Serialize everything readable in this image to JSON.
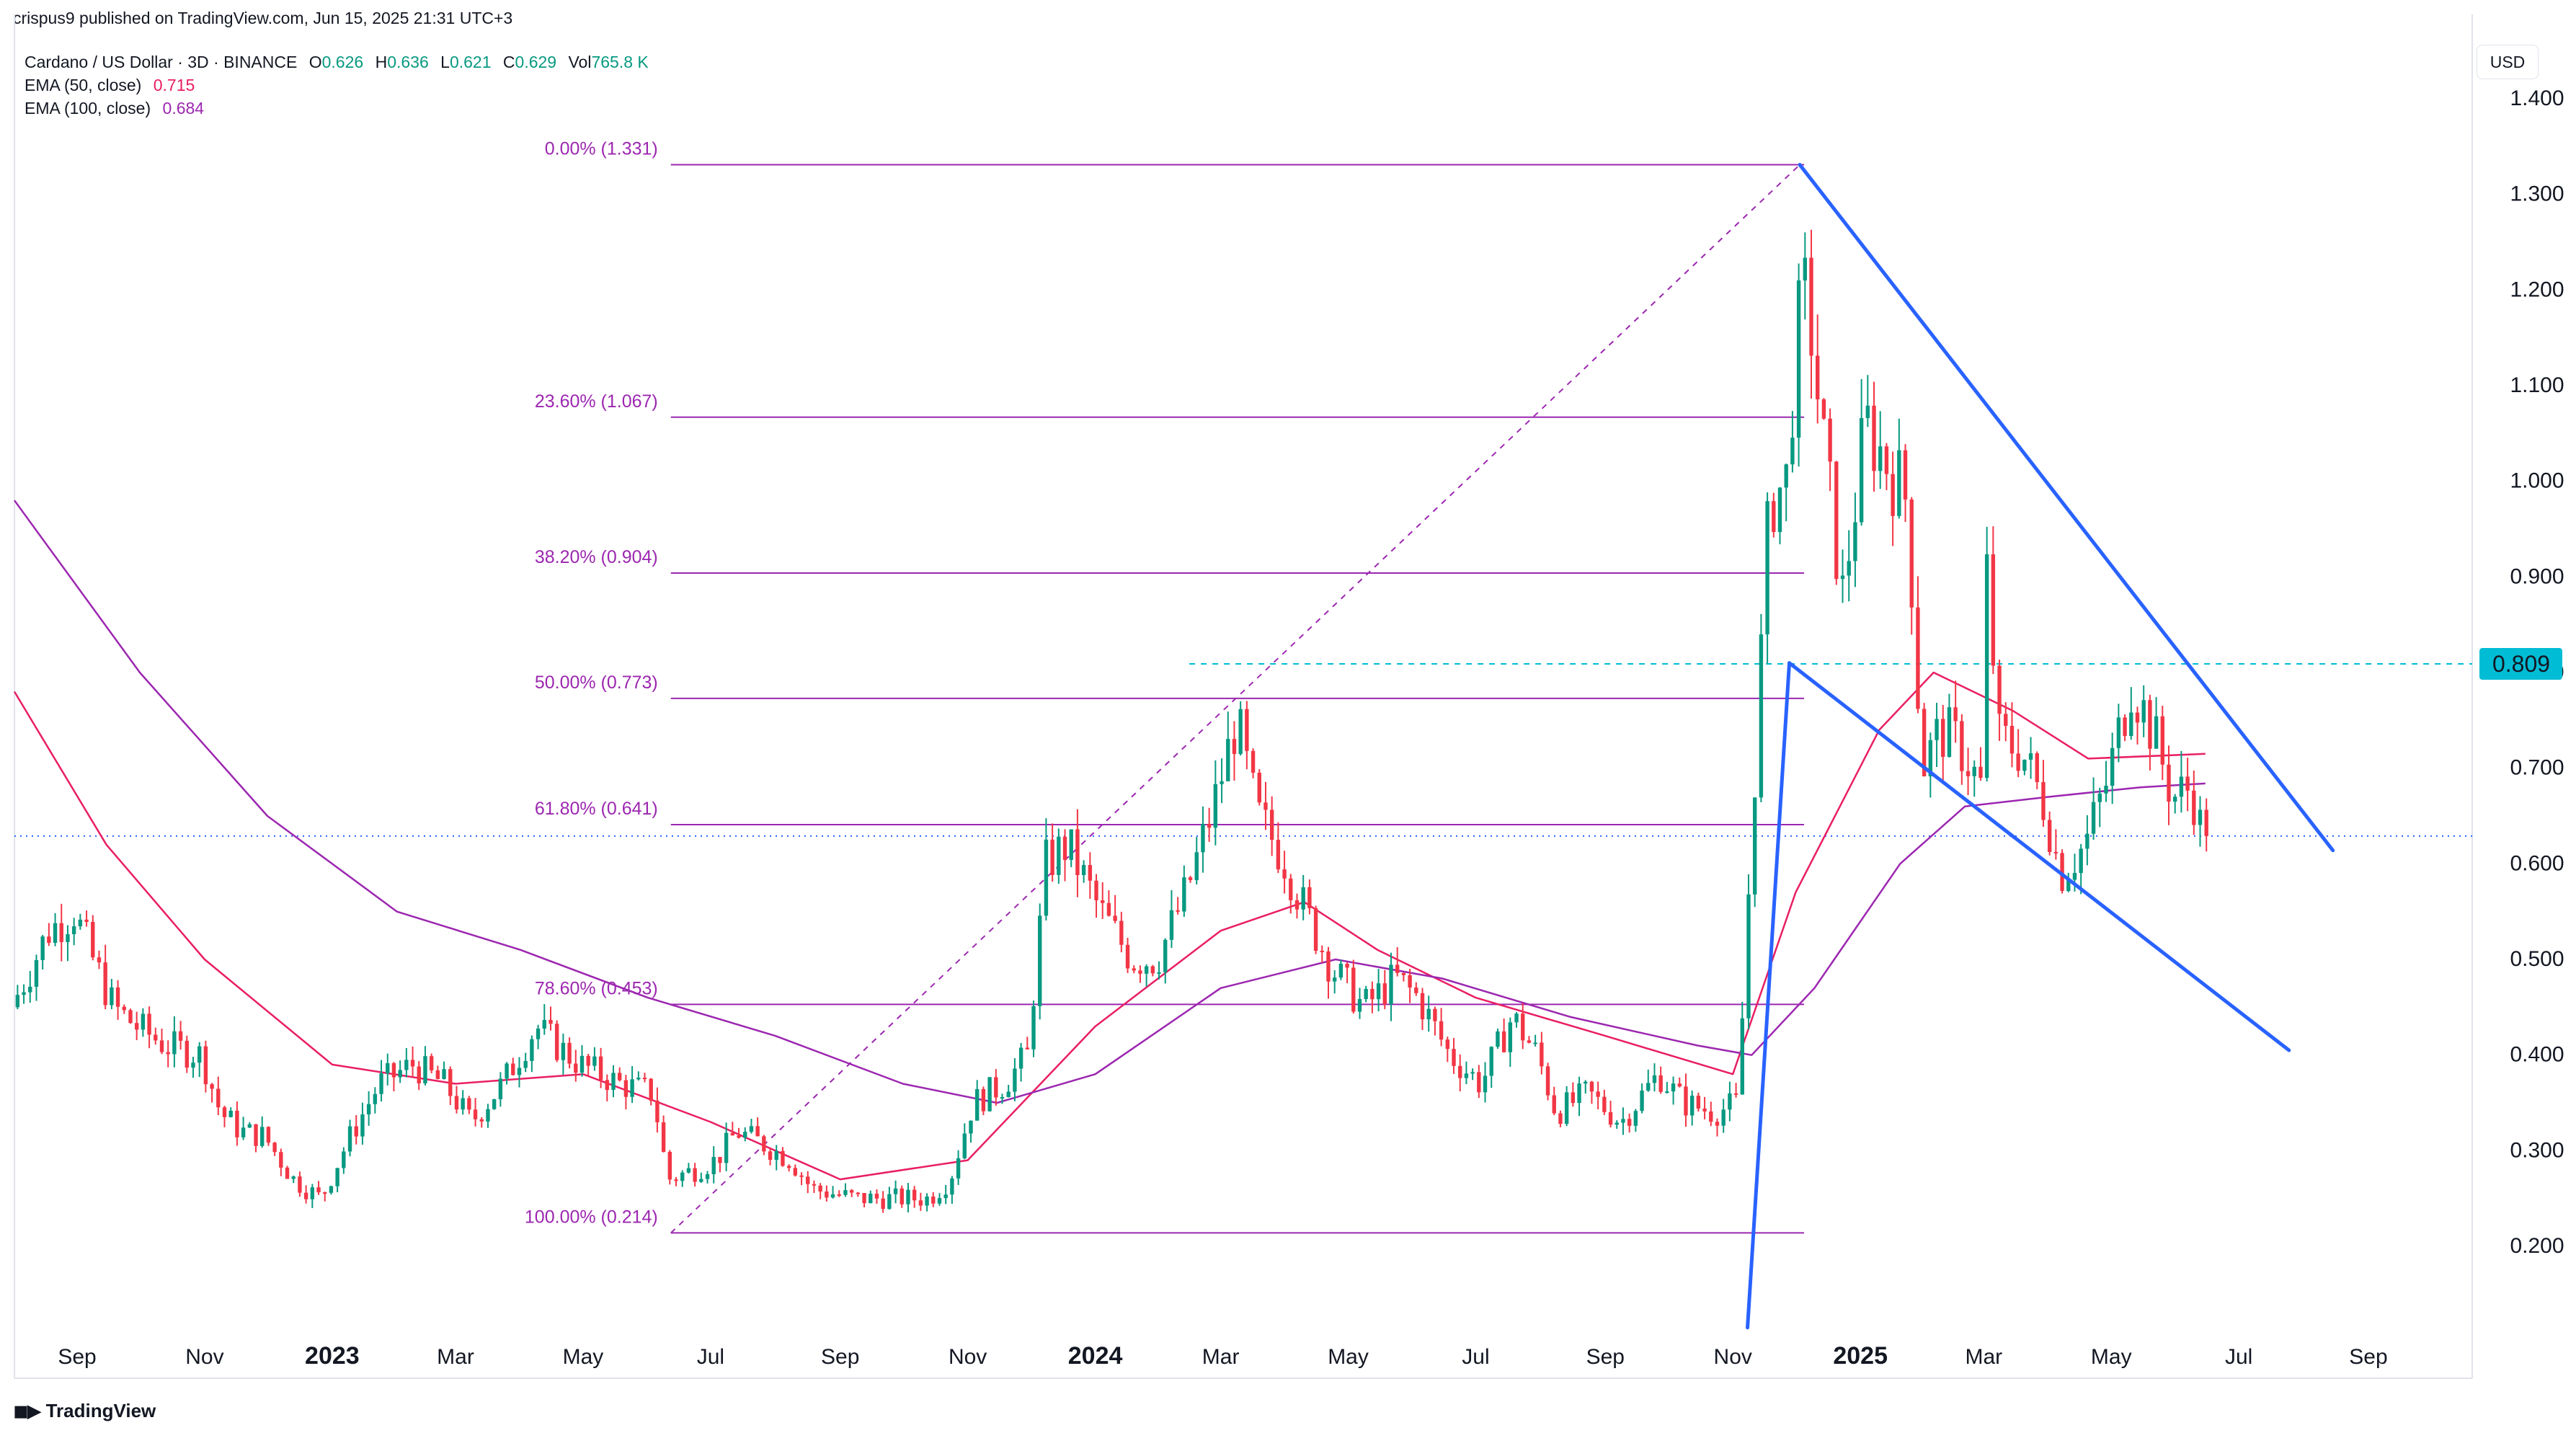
{
  "publisher": "crispus9 published on TradingView.com, Jun 15, 2025 21:31 UTC+3",
  "brand": "TradingView",
  "currency": "USD",
  "legend": {
    "symbol": "Cardano / US Dollar · 3D · BINANCE",
    "o_label": "O",
    "o": "0.626",
    "h_label": "H",
    "h": "0.636",
    "l_label": "L",
    "l": "0.621",
    "c_label": "C",
    "c": "0.629",
    "vol_label": "Vol",
    "vol": "765.8 K",
    "ema50_label": "EMA (50, close)",
    "ema50": "0.715",
    "ema100_label": "EMA (100, close)",
    "ema100": "0.684"
  },
  "colors": {
    "up": "#089981",
    "down": "#f23645",
    "ema50": "#e91e63",
    "ema100": "#9c27b0",
    "fib": "#9c27b0",
    "trend": "#2962ff",
    "resistance": "#00bcd4",
    "price_line": "#2962ff"
  },
  "chart_data": {
    "type": "candlestick",
    "x_axis_type": "date",
    "yaxis": {
      "ticks": [
        0.2,
        0.3,
        0.4,
        0.5,
        0.6,
        0.7,
        0.8,
        0.9,
        1.0,
        1.1,
        1.2,
        1.3,
        1.4
      ],
      "tick_labels": [
        "0.200",
        "0.300",
        "0.400",
        "0.500",
        "0.600",
        "0.700",
        "0.800",
        "0.900",
        "1.000",
        "1.100",
        "1.200",
        "1.300",
        "1.400"
      ],
      "side": "right"
    },
    "xaxis": {
      "tick_dates": [
        "2022-09-01",
        "2022-11-01",
        "2023-01-01",
        "2023-03-01",
        "2023-05-01",
        "2023-07-01",
        "2023-09-01",
        "2023-11-01",
        "2024-01-01",
        "2024-03-01",
        "2024-05-01",
        "2024-07-01",
        "2024-09-01",
        "2024-11-01",
        "2025-01-01",
        "2025-03-01",
        "2025-05-01",
        "2025-07-01",
        "2025-09-01"
      ],
      "tick_labels": [
        "Sep",
        "Nov",
        "2023",
        "Mar",
        "May",
        "Jul",
        "Sep",
        "Nov",
        "2024",
        "Mar",
        "May",
        "Jul",
        "Sep",
        "Nov",
        "2025",
        "Mar",
        "May",
        "Jul",
        "Sep"
      ],
      "bold": [
        "2023",
        "2024",
        "2025"
      ]
    },
    "price_path": [
      [
        "2022-08-02",
        0.45
      ],
      [
        "2022-08-20",
        0.53
      ],
      [
        "2022-09-01",
        0.55
      ],
      [
        "2022-09-10",
        0.5
      ],
      [
        "2022-09-20",
        0.45
      ],
      [
        "2022-10-01",
        0.43
      ],
      [
        "2022-10-15",
        0.41
      ],
      [
        "2022-11-01",
        0.4
      ],
      [
        "2022-11-10",
        0.34
      ],
      [
        "2022-11-20",
        0.32
      ],
      [
        "2022-12-01",
        0.315
      ],
      [
        "2022-12-15",
        0.27
      ],
      [
        "2022-12-28",
        0.25
      ],
      [
        "2023-01-10",
        0.31
      ],
      [
        "2023-01-25",
        0.37
      ],
      [
        "2023-02-10",
        0.39
      ],
      [
        "2023-02-25",
        0.37
      ],
      [
        "2023-03-10",
        0.33
      ],
      [
        "2023-03-25",
        0.37
      ],
      [
        "2023-04-10",
        0.43
      ],
      [
        "2023-04-20",
        0.41
      ],
      [
        "2023-05-01",
        0.39
      ],
      [
        "2023-05-20",
        0.37
      ],
      [
        "2023-06-05",
        0.36
      ],
      [
        "2023-06-12",
        0.27
      ],
      [
        "2023-06-25",
        0.28
      ],
      [
        "2023-07-05",
        0.29
      ],
      [
        "2023-07-15",
        0.32
      ],
      [
        "2023-07-25",
        0.31
      ],
      [
        "2023-08-10",
        0.29
      ],
      [
        "2023-08-20",
        0.26
      ],
      [
        "2023-09-10",
        0.25
      ],
      [
        "2023-10-01",
        0.25
      ],
      [
        "2023-10-15",
        0.25
      ],
      [
        "2023-10-25",
        0.27
      ],
      [
        "2023-11-05",
        0.35
      ],
      [
        "2023-11-20",
        0.37
      ],
      [
        "2023-12-01",
        0.4
      ],
      [
        "2023-12-10",
        0.6
      ],
      [
        "2023-12-20",
        0.62
      ],
      [
        "2024-01-05",
        0.55
      ],
      [
        "2024-01-20",
        0.5
      ],
      [
        "2024-02-01",
        0.5
      ],
      [
        "2024-02-15",
        0.57
      ],
      [
        "2024-02-28",
        0.66
      ],
      [
        "2024-03-10",
        0.75
      ],
      [
        "2024-03-20",
        0.65
      ],
      [
        "2024-04-01",
        0.61
      ],
      [
        "2024-04-12",
        0.55
      ],
      [
        "2024-04-25",
        0.49
      ],
      [
        "2024-05-10",
        0.45
      ],
      [
        "2024-05-25",
        0.48
      ],
      [
        "2024-06-05",
        0.46
      ],
      [
        "2024-06-20",
        0.4
      ],
      [
        "2024-07-05",
        0.37
      ],
      [
        "2024-07-20",
        0.44
      ],
      [
        "2024-08-01",
        0.4
      ],
      [
        "2024-08-10",
        0.34
      ],
      [
        "2024-08-25",
        0.36
      ],
      [
        "2024-09-10",
        0.33
      ],
      [
        "2024-09-28",
        0.38
      ],
      [
        "2024-10-10",
        0.35
      ],
      [
        "2024-10-25",
        0.34
      ],
      [
        "2024-11-05",
        0.35
      ],
      [
        "2024-11-10",
        0.57
      ],
      [
        "2024-11-15",
        0.78
      ],
      [
        "2024-11-20",
        0.98
      ],
      [
        "2024-11-28",
        1.0
      ],
      [
        "2024-12-03",
        1.15
      ],
      [
        "2024-12-08",
        1.2
      ],
      [
        "2024-12-15",
        1.05
      ],
      [
        "2024-12-25",
        0.88
      ],
      [
        "2025-01-05",
        1.06
      ],
      [
        "2025-01-15",
        1.02
      ],
      [
        "2025-01-25",
        0.98
      ],
      [
        "2025-02-01",
        0.7
      ],
      [
        "2025-02-10",
        0.74
      ],
      [
        "2025-02-20",
        0.72
      ],
      [
        "2025-03-01",
        0.68
      ],
      [
        "2025-03-03",
        0.93
      ],
      [
        "2025-03-10",
        0.73
      ],
      [
        "2025-03-20",
        0.72
      ],
      [
        "2025-04-01",
        0.66
      ],
      [
        "2025-04-08",
        0.59
      ],
      [
        "2025-04-20",
        0.62
      ],
      [
        "2025-05-01",
        0.69
      ],
      [
        "2025-05-12",
        0.79
      ],
      [
        "2025-05-22",
        0.74
      ],
      [
        "2025-06-01",
        0.67
      ],
      [
        "2025-06-10",
        0.68
      ],
      [
        "2025-06-15",
        0.629
      ]
    ],
    "last_price": 0.629,
    "ema": [
      {
        "name": "EMA (50, close)",
        "path": [
          [
            "2022-08-02",
            0.78
          ],
          [
            "2022-09-15",
            0.62
          ],
          [
            "2022-11-01",
            0.5
          ],
          [
            "2023-01-01",
            0.39
          ],
          [
            "2023-03-01",
            0.37
          ],
          [
            "2023-05-01",
            0.38
          ],
          [
            "2023-07-01",
            0.33
          ],
          [
            "2023-09-01",
            0.27
          ],
          [
            "2023-11-01",
            0.29
          ],
          [
            "2024-01-01",
            0.43
          ],
          [
            "2024-03-01",
            0.53
          ],
          [
            "2024-04-10",
            0.56
          ],
          [
            "2024-05-15",
            0.51
          ],
          [
            "2024-07-01",
            0.46
          ],
          [
            "2024-09-01",
            0.42
          ],
          [
            "2024-11-01",
            0.38
          ],
          [
            "2024-12-01",
            0.57
          ],
          [
            "2025-01-10",
            0.74
          ],
          [
            "2025-02-05",
            0.8
          ],
          [
            "2025-03-15",
            0.76
          ],
          [
            "2025-04-20",
            0.71
          ],
          [
            "2025-06-15",
            0.715
          ]
        ]
      },
      {
        "name": "EMA (100, close)",
        "path": [
          [
            "2022-08-02",
            0.98
          ],
          [
            "2022-10-01",
            0.8
          ],
          [
            "2022-12-01",
            0.65
          ],
          [
            "2023-02-01",
            0.55
          ],
          [
            "2023-04-01",
            0.51
          ],
          [
            "2023-06-01",
            0.46
          ],
          [
            "2023-08-01",
            0.42
          ],
          [
            "2023-10-01",
            0.37
          ],
          [
            "2023-11-15",
            0.35
          ],
          [
            "2024-01-01",
            0.38
          ],
          [
            "2024-03-01",
            0.47
          ],
          [
            "2024-04-25",
            0.5
          ],
          [
            "2024-06-15",
            0.48
          ],
          [
            "2024-08-15",
            0.44
          ],
          [
            "2024-10-15",
            0.41
          ],
          [
            "2024-11-10",
            0.4
          ],
          [
            "2024-12-10",
            0.47
          ],
          [
            "2025-01-20",
            0.6
          ],
          [
            "2025-02-20",
            0.66
          ],
          [
            "2025-04-01",
            0.67
          ],
          [
            "2025-05-15",
            0.68
          ],
          [
            "2025-06-15",
            0.684
          ]
        ]
      }
    ],
    "fibonacci": {
      "start": "2023-06-12",
      "end": "2024-12-03",
      "levels": [
        {
          "label": "0.00% (1.331)",
          "value": 1.331
        },
        {
          "label": "23.60% (1.067)",
          "value": 1.067
        },
        {
          "label": "38.20% (0.904)",
          "value": 0.904
        },
        {
          "label": "50.00% (0.773)",
          "value": 0.773
        },
        {
          "label": "61.80% (0.641)",
          "value": 0.641
        },
        {
          "label": "78.60% (0.453)",
          "value": 0.453
        },
        {
          "label": "100.00% (0.214)",
          "value": 0.214
        }
      ]
    },
    "resistance": {
      "value": 0.809,
      "label": "0.809",
      "from": "2024-02-15"
    },
    "trendlines": [
      {
        "from": [
          "2024-11-08",
          0.115
        ],
        "to": [
          "2024-11-28",
          0.81
        ]
      },
      {
        "from": [
          "2024-11-28",
          0.81
        ],
        "to": [
          "2025-07-25",
          0.405
        ]
      },
      {
        "from": [
          "2024-12-03",
          1.331
        ],
        "to": [
          "2025-08-15",
          0.614
        ]
      }
    ]
  }
}
